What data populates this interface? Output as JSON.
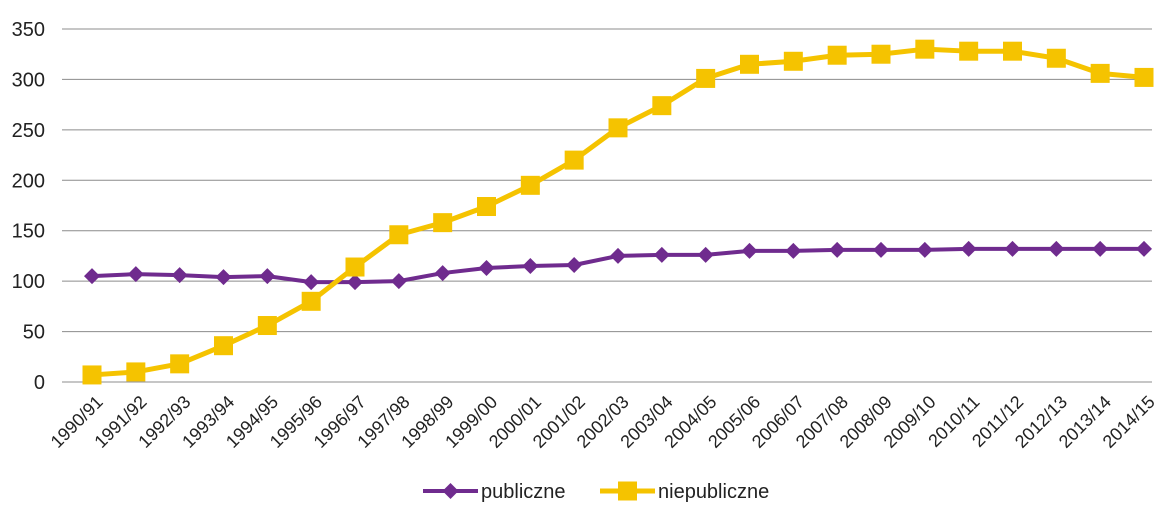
{
  "chart_data": {
    "type": "line",
    "categories": [
      "1990/91",
      "1991/92",
      "1992/93",
      "1993/94",
      "1994/95",
      "1995/96",
      "1996/97",
      "1997/98",
      "1998/99",
      "1999/00",
      "2000/01",
      "2001/02",
      "2002/03",
      "2003/04",
      "2004/05",
      "2005/06",
      "2006/07",
      "2007/08",
      "2008/09",
      "2009/10",
      "2010/11",
      "2011/12",
      "2012/13",
      "2013/14",
      "2014/15"
    ],
    "series": [
      {
        "name": "publiczne",
        "color": "#6f2b8e",
        "marker": "diamond",
        "values": [
          105,
          107,
          106,
          104,
          105,
          99,
          99,
          100,
          108,
          113,
          115,
          116,
          125,
          126,
          126,
          130,
          130,
          131,
          131,
          131,
          132,
          132,
          132,
          132,
          132
        ]
      },
      {
        "name": "niepubliczne",
        "color": "#f5c300",
        "marker": "square",
        "values": [
          7,
          10,
          18,
          36,
          56,
          80,
          114,
          146,
          158,
          174,
          195,
          220,
          252,
          274,
          301,
          315,
          318,
          324,
          325,
          330,
          328,
          328,
          321,
          306,
          302
        ]
      }
    ],
    "yticks": [
      0,
      50,
      100,
      150,
      200,
      250,
      300,
      350
    ],
    "ylim": [
      0,
      350
    ],
    "grid": true,
    "legend_position": "bottom",
    "title": "",
    "xlabel": "",
    "ylabel": ""
  }
}
